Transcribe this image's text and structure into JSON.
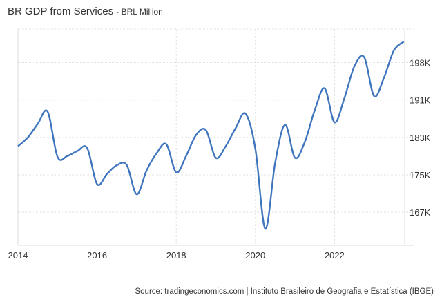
{
  "chart_data": {
    "type": "line",
    "title": "BR GDP from Services",
    "subtitle": "- BRL Million",
    "x_ticks": [
      "2014",
      "2016",
      "2018",
      "2020",
      "2022"
    ],
    "y_ticks": [
      {
        "label": "167K",
        "value": 167.3
      },
      {
        "label": "175K",
        "value": 175.0
      },
      {
        "label": "183K",
        "value": 182.7
      },
      {
        "label": "191K",
        "value": 190.4
      },
      {
        "label": "198K",
        "value": 198.1
      }
    ],
    "y_unit": "thousand BRL Million",
    "ylim": [
      160.5,
      205
    ],
    "xlim": [
      2014,
      2023.9
    ],
    "grid": true,
    "y_axis_side": "right",
    "line_color": "#3f75bd",
    "series": [
      {
        "x": [
          2014.0,
          2014.25,
          2014.5,
          2014.75,
          2015.0,
          2015.25,
          2015.5,
          2015.75,
          2016.0,
          2016.25,
          2016.5,
          2016.75,
          2017.0,
          2017.25,
          2017.5,
          2017.75,
          2018.0,
          2018.25,
          2018.5,
          2018.75,
          2019.0,
          2019.25,
          2019.5,
          2019.75,
          2020.0,
          2020.25,
          2020.5,
          2020.75,
          2021.0,
          2021.25,
          2021.5,
          2021.75,
          2022.0,
          2022.25,
          2022.5,
          2022.75,
          2023.0,
          2023.25,
          2023.5,
          2023.75
        ],
        "values": [
          180.9,
          182.7,
          185.5,
          188.0,
          178.7,
          178.9,
          179.9,
          180.5,
          173.1,
          175.2,
          177.0,
          177.0,
          171.0,
          175.9,
          179.4,
          181.3,
          175.5,
          178.9,
          183.2,
          184.2,
          178.5,
          180.9,
          184.6,
          187.6,
          180.3,
          163.9,
          177.5,
          185.3,
          178.5,
          181.8,
          188.3,
          192.8,
          185.8,
          190.8,
          197.3,
          199.2,
          191.2,
          195.0,
          200.6,
          202.4
        ]
      }
    ]
  },
  "source": "Source: tradingeconomics.com | Instituto Brasileiro de Geografia e Estatística (IBGE)"
}
